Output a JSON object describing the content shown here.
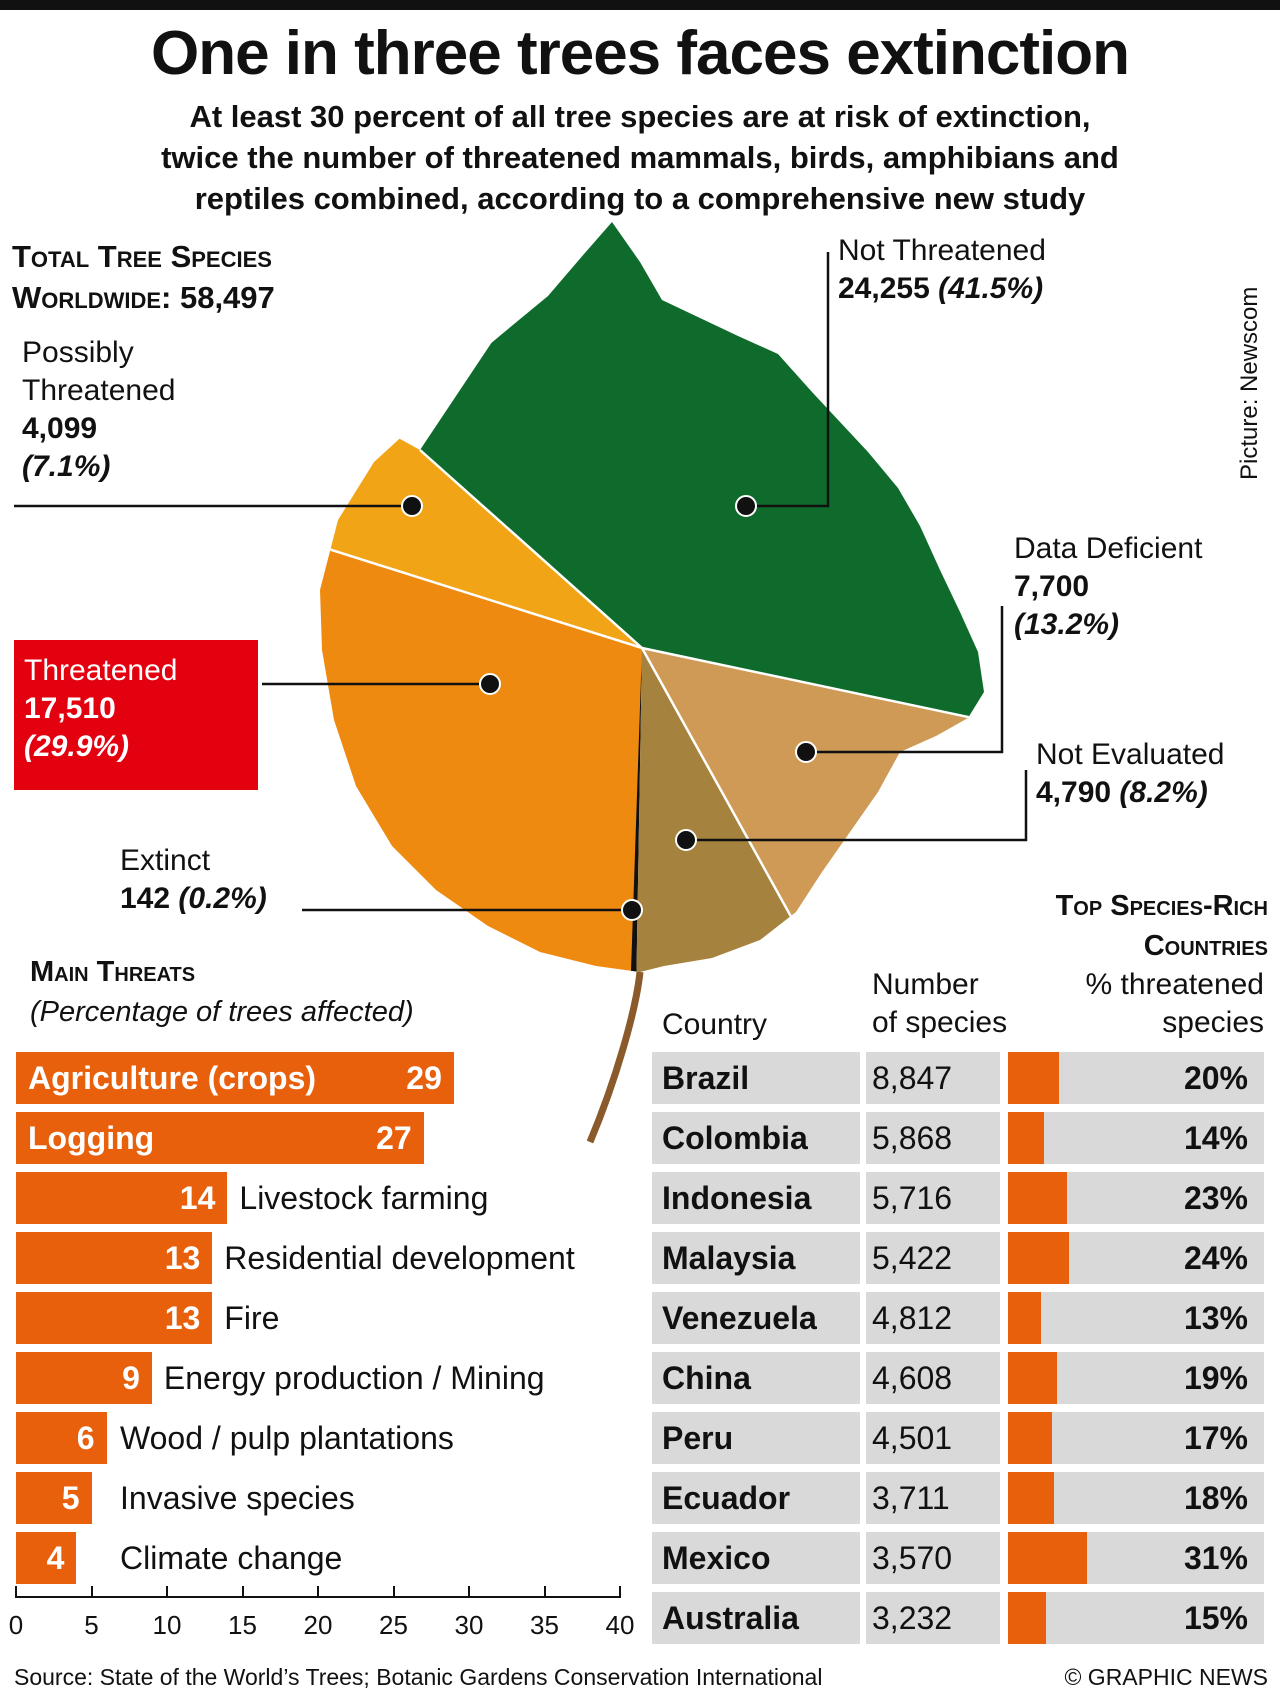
{
  "header": {
    "title": "One in three trees faces extinction",
    "subtitle_lines": [
      "At least 30 percent of all tree species are at risk of extinction,",
      "twice the number of threatened mammals, birds, amphibians and",
      "reptiles combined, according to a comprehensive new study"
    ],
    "total_line1": "Total Tree Species",
    "total_line2": "Worldwide: 58,497",
    "credit": "Picture: Newscom"
  },
  "colors": {
    "not_threatened": "#0f6b2c",
    "possibly_threatened": "#f2a417",
    "threatened": "#ef8a10",
    "data_deficient": "#cf9a55",
    "not_evaluated": "#a5823e",
    "bar": "#e8600c",
    "red_box": "#e3000f",
    "table_grey": "#d9d9d9"
  },
  "chart_data": [
    {
      "type": "pie",
      "slices": [
        {
          "label_lines": [
            "Not Threatened"
          ],
          "count": "24,255",
          "value": 24255,
          "pct": "(41.5%)"
        },
        {
          "label_lines": [
            "Data Deficient"
          ],
          "count": "7,700",
          "value": 7700,
          "pct": "(13.2%)"
        },
        {
          "label_lines": [
            "Not Evaluated"
          ],
          "count": "4,790",
          "value": 4790,
          "pct": "(8.2%)"
        },
        {
          "label_lines": [
            "Extinct"
          ],
          "count": "142",
          "value": 142,
          "pct": "(0.2%)"
        },
        {
          "label_lines": [
            "Threatened"
          ],
          "count": "17,510",
          "value": 17510,
          "pct": "(29.9%)"
        },
        {
          "label_lines": [
            "Possibly",
            "Threatened"
          ],
          "count": "4,099",
          "value": 4099,
          "pct": "(7.1%)"
        }
      ]
    },
    {
      "type": "bar",
      "title": "Main Threats",
      "subtitle": "(Percentage of trees affected)",
      "categories": [
        "Agriculture (crops)",
        "Logging",
        "Livestock farming",
        "Residential development",
        "Fire",
        "Energy production / Mining",
        "Wood / pulp plantations",
        "Invasive species",
        "Climate change"
      ],
      "values": [
        29,
        27,
        14,
        13,
        13,
        9,
        6,
        5,
        4
      ],
      "xlim": [
        0,
        40
      ],
      "xticks": [
        0,
        5,
        10,
        15,
        20,
        25,
        30,
        35,
        40
      ]
    },
    {
      "type": "table",
      "title_lines": [
        "Top Species-Rich",
        "Countries"
      ],
      "headers": {
        "country": "Country",
        "species_lines": [
          "Number",
          "of species"
        ],
        "pct_lines": [
          "% threatened",
          "species"
        ]
      },
      "rows": [
        {
          "country": "Brazil",
          "species": "8,847",
          "pct": "20%",
          "value": 20
        },
        {
          "country": "Colombia",
          "species": "5,868",
          "pct": "14%",
          "value": 14
        },
        {
          "country": "Indonesia",
          "species": "5,716",
          "pct": "23%",
          "value": 23
        },
        {
          "country": "Malaysia",
          "species": "5,422",
          "pct": "24%",
          "value": 24
        },
        {
          "country": "Venezuela",
          "species": "4,812",
          "pct": "13%",
          "value": 13
        },
        {
          "country": "China",
          "species": "4,608",
          "pct": "19%",
          "value": 19
        },
        {
          "country": "Peru",
          "species": "4,501",
          "pct": "17%",
          "value": 17
        },
        {
          "country": "Ecuador",
          "species": "3,711",
          "pct": "18%",
          "value": 18
        },
        {
          "country": "Mexico",
          "species": "3,570",
          "pct": "31%",
          "value": 31
        },
        {
          "country": "Australia",
          "species": "3,232",
          "pct": "15%",
          "value": 15
        }
      ]
    }
  ],
  "footer": {
    "source": "Source: State of the World’s Trees; Botanic Gardens Conservation International",
    "copyright": "© GRAPHIC NEWS"
  }
}
